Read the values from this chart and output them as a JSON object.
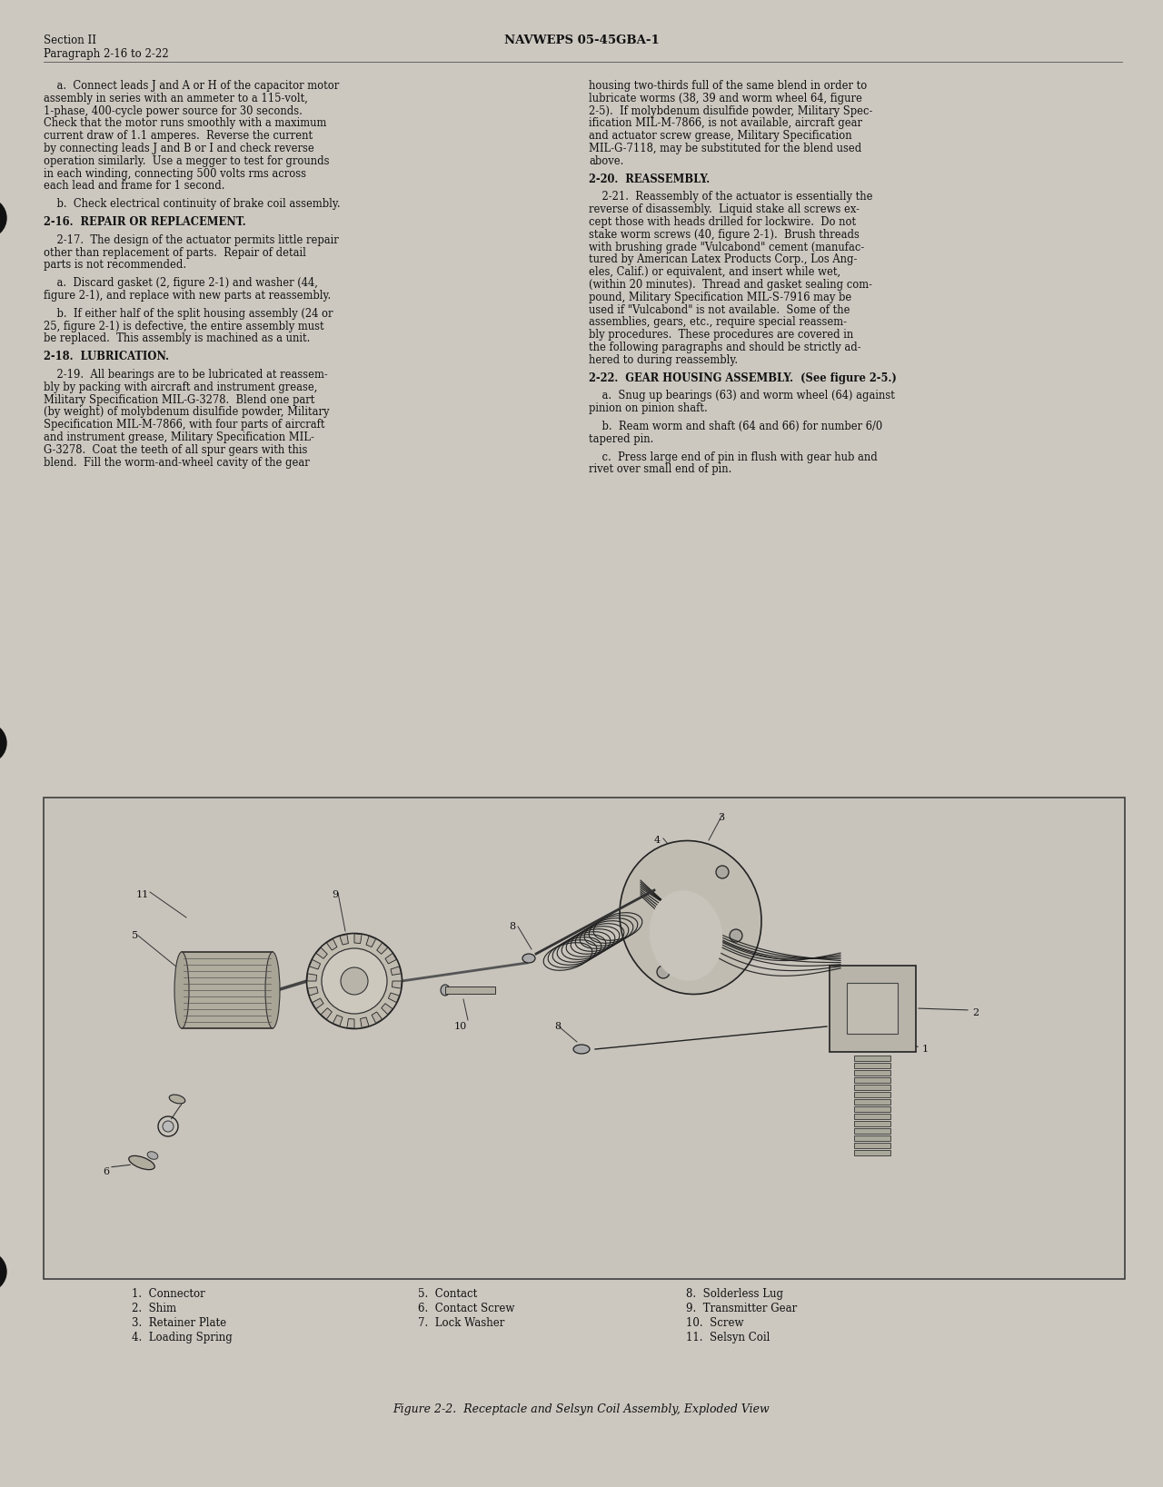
{
  "page_bg": "#ccc8c0",
  "text_color": "#111111",
  "header_left_line1": "Section II",
  "header_left_line2": "Paragraph 2-16 to 2-22",
  "header_center": "NAVWEPS 05-45GBA-1",
  "col1_lines": [
    [
      "",
      false
    ],
    [
      "    a.  Connect leads J and A or H of the capacitor motor",
      false
    ],
    [
      "assembly in series with an ammeter to a 115-volt,",
      false
    ],
    [
      "1-phase, 400-cycle power source for 30 seconds.",
      false
    ],
    [
      "Check that the motor runs smoothly with a maximum",
      false
    ],
    [
      "current draw of 1.1 amperes.  Reverse the current",
      false
    ],
    [
      "by connecting leads J and B or I and check reverse",
      false
    ],
    [
      "operation similarly.  Use a megger to test for grounds",
      false
    ],
    [
      "in each winding, connecting 500 volts rms across",
      false
    ],
    [
      "each lead and frame for 1 second.",
      false
    ],
    [
      "",
      false
    ],
    [
      "    b.  Check electrical continuity of brake coil assembly.",
      false
    ],
    [
      "",
      false
    ],
    [
      "2-16.  REPAIR OR REPLACEMENT.",
      true
    ],
    [
      "",
      false
    ],
    [
      "    2-17.  The design of the actuator permits little repair",
      false
    ],
    [
      "other than replacement of parts.  Repair of detail",
      false
    ],
    [
      "parts is not recommended.",
      false
    ],
    [
      "",
      false
    ],
    [
      "    a.  Discard gasket (2, figure 2-1) and washer (44,",
      false
    ],
    [
      "figure 2-1), and replace with new parts at reassembly.",
      false
    ],
    [
      "",
      false
    ],
    [
      "    b.  If either half of the split housing assembly (24 or",
      false
    ],
    [
      "25, figure 2-1) is defective, the entire assembly must",
      false
    ],
    [
      "be replaced.  This assembly is machined as a unit.",
      false
    ],
    [
      "",
      false
    ],
    [
      "2-18.  LUBRICATION.",
      true
    ],
    [
      "",
      false
    ],
    [
      "    2-19.  All bearings are to be lubricated at reassem-",
      false
    ],
    [
      "bly by packing with aircraft and instrument grease,",
      false
    ],
    [
      "Military Specification MIL-G-3278.  Blend one part",
      false
    ],
    [
      "(by weight) of molybdenum disulfide powder, Military",
      false
    ],
    [
      "Specification MIL-M-7866, with four parts of aircraft",
      false
    ],
    [
      "and instrument grease, Military Specification MIL-",
      false
    ],
    [
      "G-3278.  Coat the teeth of all spur gears with this",
      false
    ],
    [
      "blend.  Fill the worm-and-wheel cavity of the gear",
      false
    ]
  ],
  "col2_lines": [
    [
      "",
      false
    ],
    [
      "housing two-thirds full of the same blend in order to",
      false
    ],
    [
      "lubricate worms (38, 39 and worm wheel 64, figure",
      false
    ],
    [
      "2-5).  If molybdenum disulfide powder, Military Spec-",
      false
    ],
    [
      "ification MIL-M-7866, is not available, aircraft gear",
      false
    ],
    [
      "and actuator screw grease, Military Specification",
      false
    ],
    [
      "MIL-G-7118, may be substituted for the blend used",
      false
    ],
    [
      "above.",
      false
    ],
    [
      "",
      false
    ],
    [
      "2-20.  REASSEMBLY.",
      true
    ],
    [
      "",
      false
    ],
    [
      "    2-21.  Reassembly of the actuator is essentially the",
      false
    ],
    [
      "reverse of disassembly.  Liquid stake all screws ex-",
      false
    ],
    [
      "cept those with heads drilled for lockwire.  Do not",
      false
    ],
    [
      "stake worm screws (40, figure 2-1).  Brush threads",
      false
    ],
    [
      "with brushing grade \"Vulcabond\" cement (manufac-",
      false
    ],
    [
      "tured by American Latex Products Corp., Los Ang-",
      false
    ],
    [
      "eles, Calif.) or equivalent, and insert while wet,",
      false
    ],
    [
      "(within 20 minutes).  Thread and gasket sealing com-",
      false
    ],
    [
      "pound, Military Specification MIL-S-7916 may be",
      false
    ],
    [
      "used if \"Vulcabond\" is not available.  Some of the",
      false
    ],
    [
      "assemblies, gears, etc., require special reassem-",
      false
    ],
    [
      "bly procedures.  These procedures are covered in",
      false
    ],
    [
      "the following paragraphs and should be strictly ad-",
      false
    ],
    [
      "hered to during reassembly.",
      false
    ],
    [
      "",
      false
    ],
    [
      "2-22.  GEAR HOUSING ASSEMBLY.  (See figure 2-5.)",
      true
    ],
    [
      "",
      false
    ],
    [
      "    a.  Snug up bearings (63) and worm wheel (64) against",
      false
    ],
    [
      "pinion on pinion shaft.",
      false
    ],
    [
      "",
      false
    ],
    [
      "    b.  Ream worm and shaft (64 and 66) for number 6/0",
      false
    ],
    [
      "tapered pin.",
      false
    ],
    [
      "",
      false
    ],
    [
      "    c.  Press large end of pin in flush with gear hub and",
      false
    ],
    [
      "rivet over small end of pin.",
      false
    ]
  ],
  "figure_caption": "Figure 2-2.  Receptacle and Selsyn Coil Assembly, Exploded View",
  "legend_col1": [
    "1.  Connector",
    "2.  Shim",
    "3.  Retainer Plate",
    "4.  Loading Spring"
  ],
  "legend_col2": [
    "5.  Contact",
    "6.  Contact Screw",
    "7.  Lock Washer"
  ],
  "legend_col3": [
    "8.  Solderless Lug",
    "9.  Transmitter Gear",
    "10.  Screw",
    "11.  Selsyn Coil"
  ]
}
